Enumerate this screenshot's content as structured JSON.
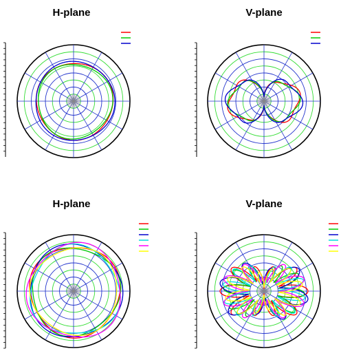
{
  "colors": {
    "red": "#ff0000",
    "green": "#00cc00",
    "blue": "#0000cc",
    "cyan": "#00dddd",
    "magenta": "#ff00ff",
    "yellow": "#ffff00",
    "grid_green": "#33dd33",
    "grid_blue": "#2233cc",
    "grid_black": "#000000"
  },
  "chart_data": [
    {
      "type": "polar",
      "title": "H-plane",
      "rings": 8,
      "spokes": 12,
      "grid": true,
      "legend": "top-right",
      "series": [
        {
          "color": "red",
          "shape": "omni",
          "radius": 0.68,
          "ripple": 0.02
        },
        {
          "color": "green",
          "shape": "omni",
          "radius": 0.66,
          "ripple": 0.03
        },
        {
          "color": "blue",
          "shape": "omni",
          "radius": 0.7,
          "ripple": 0.02
        }
      ]
    },
    {
      "type": "polar",
      "title": "V-plane",
      "rings": 8,
      "spokes": 12,
      "grid": true,
      "legend": "top-right",
      "series": [
        {
          "color": "red",
          "shape": "dipole",
          "radius": 0.62,
          "lobes": 2
        },
        {
          "color": "green",
          "shape": "dipole",
          "radius": 0.6,
          "lobes": 2
        },
        {
          "color": "blue",
          "shape": "dipole",
          "radius": 0.64,
          "lobes": 2
        }
      ]
    },
    {
      "type": "polar",
      "title": "H-plane",
      "rings": 8,
      "spokes": 12,
      "grid": true,
      "legend": "top-right",
      "series": [
        {
          "color": "red",
          "shape": "omni",
          "radius": 0.8,
          "ripple": 0.04
        },
        {
          "color": "green",
          "shape": "omni",
          "radius": 0.78,
          "ripple": 0.05
        },
        {
          "color": "blue",
          "shape": "omni",
          "radius": 0.82,
          "ripple": 0.04
        },
        {
          "color": "cyan",
          "shape": "omni",
          "radius": 0.79,
          "ripple": 0.06
        },
        {
          "color": "magenta",
          "shape": "omni",
          "radius": 0.83,
          "ripple": 0.05
        },
        {
          "color": "yellow",
          "shape": "omni",
          "radius": 0.77,
          "ripple": 0.04
        }
      ]
    },
    {
      "type": "polar",
      "title": "V-plane",
      "rings": 8,
      "spokes": 12,
      "grid": true,
      "legend": "top-right",
      "series": [
        {
          "color": "red",
          "shape": "multilobe",
          "radius": 0.78,
          "lobes": 10
        },
        {
          "color": "green",
          "shape": "multilobe",
          "radius": 0.72,
          "lobes": 12
        },
        {
          "color": "blue",
          "shape": "multilobe",
          "radius": 0.8,
          "lobes": 8
        },
        {
          "color": "cyan",
          "shape": "multilobe",
          "radius": 0.74,
          "lobes": 14
        },
        {
          "color": "magenta",
          "shape": "multilobe",
          "radius": 0.76,
          "lobes": 10
        },
        {
          "color": "yellow",
          "shape": "multilobe",
          "radius": 0.7,
          "lobes": 12
        }
      ]
    }
  ]
}
